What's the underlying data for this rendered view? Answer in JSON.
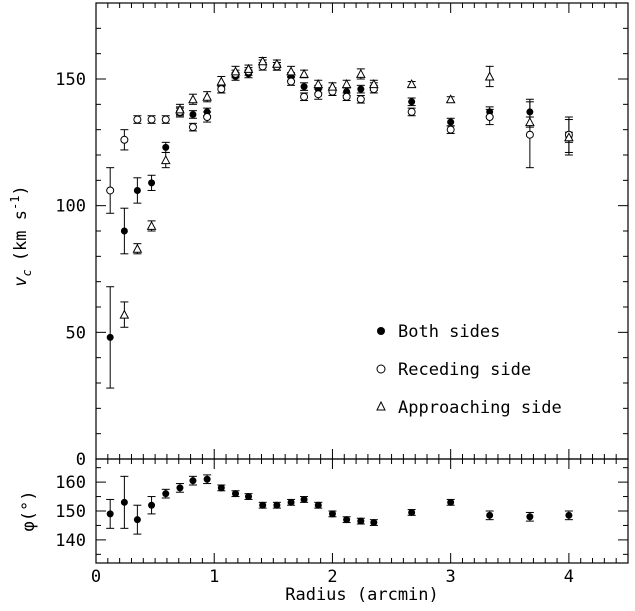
{
  "chart_data": [
    {
      "panel": "top",
      "type": "scatter",
      "xlabel": "",
      "ylabel_main": "v",
      "ylabel_sub": "c",
      "ylabel_units": "(km s",
      "ylabel_exp": "-1",
      "ylabel_close": ")",
      "xlim": [
        0,
        4.5
      ],
      "ylim": [
        0,
        180
      ],
      "yticks": [
        0,
        50,
        100,
        150
      ],
      "ytick_labels": [
        "0",
        "50",
        "100",
        "150"
      ],
      "legend_placement": "bottom-right",
      "series": [
        {
          "name": "Both sides",
          "marker": "filled-circle",
          "points": [
            {
              "x": 0.12,
              "y": 48,
              "err": 20
            },
            {
              "x": 0.24,
              "y": 90,
              "err": 9
            },
            {
              "x": 0.35,
              "y": 106,
              "err": 5
            },
            {
              "x": 0.47,
              "y": 109,
              "err": 3
            },
            {
              "x": 0.59,
              "y": 123,
              "err": 2
            },
            {
              "x": 0.71,
              "y": 137,
              "err": 2
            },
            {
              "x": 0.82,
              "y": 136,
              "err": 1.5
            },
            {
              "x": 0.94,
              "y": 137,
              "err": 1.5
            },
            {
              "x": 1.06,
              "y": 146,
              "err": 1.5
            },
            {
              "x": 1.18,
              "y": 151,
              "err": 1.5
            },
            {
              "x": 1.29,
              "y": 152,
              "err": 1.5
            },
            {
              "x": 1.41,
              "y": 156,
              "err": 1.5
            },
            {
              "x": 1.53,
              "y": 155,
              "err": 1.5
            },
            {
              "x": 1.65,
              "y": 151,
              "err": 1.5
            },
            {
              "x": 1.76,
              "y": 147,
              "err": 1.5
            },
            {
              "x": 1.88,
              "y": 146,
              "err": 1.5
            },
            {
              "x": 2.0,
              "y": 145,
              "err": 1.5
            },
            {
              "x": 2.12,
              "y": 145,
              "err": 1.5
            },
            {
              "x": 2.24,
              "y": 146,
              "err": 1.5
            },
            {
              "x": 2.35,
              "y": 147,
              "err": 1.5
            },
            {
              "x": 2.67,
              "y": 141,
              "err": 1.5
            },
            {
              "x": 3.0,
              "y": 133,
              "err": 1.5
            },
            {
              "x": 3.33,
              "y": 137,
              "err": 2
            },
            {
              "x": 3.67,
              "y": 137,
              "err": 5
            },
            {
              "x": 4.0,
              "y": 127,
              "err": 2
            }
          ]
        },
        {
          "name": "Receding side",
          "marker": "open-circle",
          "points": [
            {
              "x": 0.12,
              "y": 106,
              "err": 9
            },
            {
              "x": 0.24,
              "y": 126,
              "err": 4
            },
            {
              "x": 0.35,
              "y": 134,
              "err": 1.5
            },
            {
              "x": 0.47,
              "y": 134,
              "err": 1.5
            },
            {
              "x": 0.59,
              "y": 134,
              "err": 1.5
            },
            {
              "x": 0.71,
              "y": 137,
              "err": 1.5
            },
            {
              "x": 0.82,
              "y": 131,
              "err": 1.5
            },
            {
              "x": 0.94,
              "y": 135,
              "err": 2
            },
            {
              "x": 1.06,
              "y": 146,
              "err": 1.5
            },
            {
              "x": 1.18,
              "y": 152,
              "err": 1.5
            },
            {
              "x": 1.29,
              "y": 153,
              "err": 1.5
            },
            {
              "x": 1.41,
              "y": 155,
              "err": 1.5
            },
            {
              "x": 1.53,
              "y": 155,
              "err": 1.5
            },
            {
              "x": 1.65,
              "y": 149,
              "err": 1.5
            },
            {
              "x": 1.76,
              "y": 143,
              "err": 1.5
            },
            {
              "x": 1.88,
              "y": 144,
              "err": 2
            },
            {
              "x": 2.0,
              "y": 145,
              "err": 1.5
            },
            {
              "x": 2.12,
              "y": 143,
              "err": 1.5
            },
            {
              "x": 2.24,
              "y": 142,
              "err": 1.5
            },
            {
              "x": 2.35,
              "y": 146,
              "err": 1.5
            },
            {
              "x": 2.67,
              "y": 137,
              "err": 1.5
            },
            {
              "x": 3.0,
              "y": 130,
              "err": 1.5
            },
            {
              "x": 3.33,
              "y": 135,
              "err": 3
            },
            {
              "x": 3.67,
              "y": 128,
              "err": 13
            },
            {
              "x": 4.0,
              "y": 128,
              "err": 7
            }
          ]
        },
        {
          "name": "Approaching side",
          "marker": "open-triangle",
          "points": [
            {
              "x": 0.24,
              "y": 57,
              "err": 5
            },
            {
              "x": 0.35,
              "y": 83,
              "err": 2
            },
            {
              "x": 0.47,
              "y": 92,
              "err": 2
            },
            {
              "x": 0.59,
              "y": 118,
              "err": 3
            },
            {
              "x": 0.71,
              "y": 138,
              "err": 2
            },
            {
              "x": 0.82,
              "y": 142,
              "err": 2
            },
            {
              "x": 0.94,
              "y": 143,
              "err": 2
            },
            {
              "x": 1.06,
              "y": 149,
              "err": 2
            },
            {
              "x": 1.18,
              "y": 153,
              "err": 2
            },
            {
              "x": 1.29,
              "y": 154,
              "err": 1.5
            },
            {
              "x": 1.41,
              "y": 157,
              "err": 1.5
            },
            {
              "x": 1.53,
              "y": 156,
              "err": 1.5
            },
            {
              "x": 1.65,
              "y": 153,
              "err": 2
            },
            {
              "x": 1.76,
              "y": 152,
              "err": 1.5
            },
            {
              "x": 1.88,
              "y": 148,
              "err": 1.5
            },
            {
              "x": 2.0,
              "y": 147,
              "err": 1.5
            },
            {
              "x": 2.12,
              "y": 148,
              "err": 1.5
            },
            {
              "x": 2.24,
              "y": 152,
              "err": 2
            },
            {
              "x": 2.35,
              "y": 148,
              "err": 1.5
            },
            {
              "x": 2.67,
              "y": 148,
              "err": 1
            },
            {
              "x": 3.0,
              "y": 142,
              "err": 1
            },
            {
              "x": 3.33,
              "y": 151,
              "err": 4
            },
            {
              "x": 3.67,
              "y": 133,
              "err": 2
            },
            {
              "x": 4.0,
              "y": 127,
              "err": 7
            }
          ]
        }
      ]
    },
    {
      "panel": "bottom",
      "type": "scatter",
      "xlabel": "Radius (arcmin)",
      "ylabel": "φ(°)",
      "xlim": [
        0,
        4.5
      ],
      "ylim": [
        132,
        168
      ],
      "yticks": [
        140,
        150,
        160
      ],
      "ytick_labels": [
        "140",
        "150",
        "160"
      ],
      "xticks": [
        0,
        1,
        2,
        3,
        4
      ],
      "xtick_labels": [
        "0",
        "1",
        "2",
        "3",
        "4"
      ],
      "series": [
        {
          "name": "",
          "marker": "filled-circle",
          "points": [
            {
              "x": 0.12,
              "y": 149,
              "err": 5
            },
            {
              "x": 0.24,
              "y": 153,
              "err": 9
            },
            {
              "x": 0.35,
              "y": 147,
              "err": 5
            },
            {
              "x": 0.47,
              "y": 152,
              "err": 3
            },
            {
              "x": 0.59,
              "y": 156,
              "err": 1.5
            },
            {
              "x": 0.71,
              "y": 158,
              "err": 1.5
            },
            {
              "x": 0.82,
              "y": 160.5,
              "err": 1.5
            },
            {
              "x": 0.94,
              "y": 161,
              "err": 1.5
            },
            {
              "x": 1.06,
              "y": 158,
              "err": 1
            },
            {
              "x": 1.18,
              "y": 156,
              "err": 1
            },
            {
              "x": 1.29,
              "y": 155,
              "err": 1
            },
            {
              "x": 1.41,
              "y": 152,
              "err": 1
            },
            {
              "x": 1.53,
              "y": 152,
              "err": 1
            },
            {
              "x": 1.65,
              "y": 153,
              "err": 1
            },
            {
              "x": 1.76,
              "y": 154,
              "err": 1
            },
            {
              "x": 1.88,
              "y": 152,
              "err": 1
            },
            {
              "x": 2.0,
              "y": 149,
              "err": 1
            },
            {
              "x": 2.12,
              "y": 147,
              "err": 1
            },
            {
              "x": 2.24,
              "y": 146.5,
              "err": 1
            },
            {
              "x": 2.35,
              "y": 146,
              "err": 1
            },
            {
              "x": 2.67,
              "y": 149.5,
              "err": 1
            },
            {
              "x": 3.0,
              "y": 153,
              "err": 1
            },
            {
              "x": 3.33,
              "y": 148.5,
              "err": 1.5
            },
            {
              "x": 3.67,
              "y": 148,
              "err": 1.5
            },
            {
              "x": 4.0,
              "y": 148.5,
              "err": 1.5
            }
          ]
        }
      ]
    }
  ],
  "legend": {
    "both": "Both sides",
    "receding": "Receding side",
    "approaching": "Approaching side"
  }
}
